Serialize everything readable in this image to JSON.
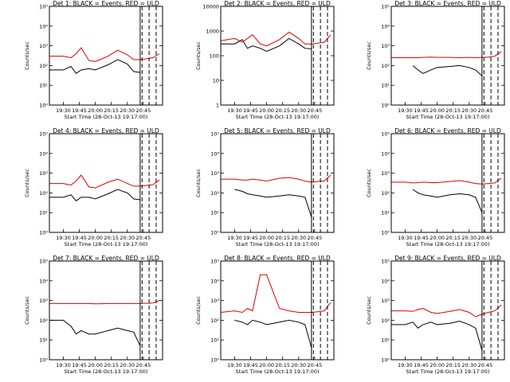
{
  "panel_titles": [
    "Det 1: BLACK = Events, RED = ULD",
    "Det 2: BLACK = Events, RED = ULD",
    "Det 3: BLACK = Events, RED = ULD",
    "Det 4: BLACK = Events, RED = ULD",
    "Det 5: BLACK = Events, RED = ULD",
    "Det 6: BLACK = Events, RED = ULD",
    "Det 7: BLACK = Events, RED = ULD",
    "Det 8: BLACK = Events, RED = ULD",
    "Det 9: BLACK = Events, RED = ULD"
  ],
  "xlabel": "Start Time (28-Oct-13 19:17:00)",
  "ylabel": "Counts/sec",
  "xticks": [
    "19:30",
    "19:45",
    "20:00",
    "20:15",
    "20:30",
    "20:45"
  ],
  "colors": {
    "events": "#000000",
    "uld": "#dd0000"
  },
  "chart_data": [
    {
      "type": "line",
      "title": "Det 1: BLACK = Events, RED = ULD",
      "ylim": [
        1,
        100000
      ],
      "yticks": [
        "10⁰",
        "10¹",
        "10²",
        "10³",
        "10⁴",
        "10⁵"
      ],
      "x": [
        19.28,
        19.5,
        19.62,
        19.7,
        19.78,
        19.9,
        20.0,
        20.2,
        20.35,
        20.5,
        20.6,
        20.7,
        20.8,
        20.9,
        21.0
      ],
      "series": [
        {
          "name": "BLACK = Events",
          "values": [
            60,
            60,
            90,
            40,
            60,
            70,
            60,
            110,
            200,
            120,
            50,
            45,
            null,
            null,
            null
          ]
        },
        {
          "name": "RED = ULD",
          "values": [
            300,
            300,
            250,
            400,
            800,
            180,
            160,
            300,
            600,
            350,
            200,
            200,
            220,
            250,
            400
          ]
        }
      ],
      "xlabel": "Start Time (28-Oct-13 19:17:00)",
      "ylabel": "Counts/sec",
      "yscale": "log"
    },
    {
      "type": "line",
      "title": "Det 2: BLACK = Events, RED = ULD",
      "ylim": [
        1,
        10000
      ],
      "yticks": [
        "1",
        "10",
        "100",
        "1000",
        "10000"
      ],
      "x": [
        19.28,
        19.5,
        19.62,
        19.7,
        19.78,
        19.9,
        20.0,
        20.2,
        20.35,
        20.5,
        20.6,
        20.7,
        20.8,
        20.9,
        21.0
      ],
      "series": [
        {
          "name": "BLACK = Events",
          "values": [
            300,
            300,
            450,
            200,
            250,
            200,
            150,
            250,
            500,
            300,
            200,
            190,
            null,
            null,
            null
          ]
        },
        {
          "name": "RED = ULD",
          "values": [
            400,
            500,
            350,
            500,
            700,
            300,
            250,
            450,
            900,
            500,
            300,
            300,
            320,
            350,
            700
          ]
        }
      ],
      "xlabel": "Start Time (28-Oct-13 19:17:00)",
      "ylabel": "Counts/sec",
      "yscale": "log"
    },
    {
      "type": "line",
      "title": "Det 3: BLACK = Events, RED = ULD",
      "ylim": [
        1,
        100000
      ],
      "yticks": [
        "10⁰",
        "10¹",
        "10²",
        "10³",
        "10⁴",
        "10⁵"
      ],
      "x": [
        19.28,
        19.5,
        19.62,
        19.7,
        19.78,
        19.9,
        20.0,
        20.2,
        20.35,
        20.5,
        20.6,
        20.7,
        20.8,
        20.9,
        21.0
      ],
      "series": [
        {
          "name": "BLACK = Events",
          "values": [
            null,
            null,
            100,
            60,
            40,
            60,
            80,
            90,
            100,
            80,
            60,
            30,
            null,
            null,
            null
          ]
        },
        {
          "name": "RED = ULD",
          "values": [
            250,
            250,
            250,
            250,
            260,
            270,
            260,
            260,
            250,
            260,
            250,
            260,
            270,
            300,
            500
          ]
        }
      ],
      "xlabel": "Start Time (28-Oct-13 19:17:00)",
      "ylabel": "Counts/sec",
      "yscale": "log"
    },
    {
      "type": "line",
      "title": "Det 4: BLACK = Events, RED = ULD",
      "ylim": [
        1,
        100000
      ],
      "yticks": [
        "10⁰",
        "10¹",
        "10²",
        "10³",
        "10⁴",
        "10⁵"
      ],
      "x": [
        19.28,
        19.5,
        19.62,
        19.7,
        19.78,
        19.9,
        20.0,
        20.2,
        20.35,
        20.5,
        20.6,
        20.7,
        20.8,
        20.9,
        21.0
      ],
      "series": [
        {
          "name": "BLACK = Events",
          "values": [
            60,
            60,
            80,
            40,
            60,
            60,
            50,
            90,
            150,
            100,
            50,
            45,
            null,
            null,
            null
          ]
        },
        {
          "name": "RED = ULD",
          "values": [
            300,
            300,
            250,
            400,
            800,
            200,
            180,
            350,
            500,
            300,
            220,
            220,
            240,
            260,
            450
          ]
        }
      ],
      "xlabel": "Start Time (28-Oct-13 19:17:00)",
      "ylabel": "Counts/sec",
      "yscale": "log"
    },
    {
      "type": "line",
      "title": "Det 5: BLACK = Events, RED = ULD",
      "ylim": [
        1,
        100000
      ],
      "yticks": [
        "10⁰",
        "10¹",
        "10²",
        "10³",
        "10⁴",
        "10⁵"
      ],
      "x": [
        19.28,
        19.5,
        19.62,
        19.7,
        19.78,
        19.9,
        20.0,
        20.2,
        20.35,
        20.5,
        20.6,
        20.7,
        20.8,
        20.9,
        21.0
      ],
      "series": [
        {
          "name": "BLACK = Events",
          "values": [
            null,
            150,
            120,
            90,
            80,
            70,
            60,
            70,
            80,
            70,
            60,
            6,
            null,
            null,
            null
          ]
        },
        {
          "name": "RED = ULD",
          "values": [
            500,
            500,
            450,
            450,
            500,
            450,
            400,
            550,
            600,
            500,
            400,
            350,
            380,
            400,
            800
          ]
        }
      ],
      "xlabel": "Start Time (28-Oct-13 19:17:00)",
      "ylabel": "Counts/sec",
      "yscale": "log"
    },
    {
      "type": "line",
      "title": "Det 6: BLACK = Events, RED = ULD",
      "ylim": [
        1,
        100000
      ],
      "yticks": [
        "10⁰",
        "10¹",
        "10²",
        "10³",
        "10⁴",
        "10⁵"
      ],
      "x": [
        19.28,
        19.5,
        19.62,
        19.7,
        19.78,
        19.9,
        20.0,
        20.2,
        20.35,
        20.5,
        20.6,
        20.7,
        20.8,
        20.9,
        21.0
      ],
      "series": [
        {
          "name": "BLACK = Events",
          "values": [
            null,
            null,
            150,
            100,
            80,
            70,
            60,
            80,
            90,
            80,
            60,
            10,
            null,
            null,
            null
          ]
        },
        {
          "name": "RED = ULD",
          "values": [
            350,
            350,
            320,
            330,
            350,
            330,
            330,
            380,
            420,
            350,
            300,
            280,
            300,
            320,
            550
          ]
        }
      ],
      "xlabel": "Start Time (28-Oct-13 19:17:00)",
      "ylabel": "Counts/sec",
      "yscale": "log"
    },
    {
      "type": "line",
      "title": "Det 7: BLACK = Events, RED = ULD",
      "ylim": [
        1,
        100000
      ],
      "yticks": [
        "10⁰",
        "10¹",
        "10²",
        "10³",
        "10⁴",
        "10⁵"
      ],
      "x": [
        19.28,
        19.5,
        19.62,
        19.7,
        19.78,
        19.9,
        20.0,
        20.2,
        20.35,
        20.5,
        20.6,
        20.7,
        20.8,
        20.9,
        21.0
      ],
      "series": [
        {
          "name": "BLACK = Events",
          "values": [
            100,
            100,
            50,
            20,
            30,
            20,
            20,
            30,
            40,
            30,
            25,
            5,
            null,
            null,
            null
          ]
        },
        {
          "name": "RED = ULD",
          "values": [
            700,
            700,
            700,
            700,
            700,
            700,
            680,
            700,
            700,
            700,
            700,
            700,
            720,
            750,
            1000
          ]
        }
      ],
      "xlabel": "Start Time (28-Oct-13 19:17:00)",
      "ylabel": "Counts/sec",
      "yscale": "log"
    },
    {
      "type": "line",
      "title": "Det 8: BLACK = Events, RED = ULD",
      "ylim": [
        1,
        100000
      ],
      "yticks": [
        "10⁰",
        "10¹",
        "10²",
        "10³",
        "10⁴",
        "10⁵"
      ],
      "x": [
        19.28,
        19.5,
        19.62,
        19.7,
        19.78,
        19.9,
        20.0,
        20.2,
        20.35,
        20.5,
        20.6,
        20.7,
        20.8,
        20.9,
        21.0
      ],
      "series": [
        {
          "name": "BLACK = Events",
          "values": [
            null,
            100,
            80,
            60,
            100,
            80,
            60,
            80,
            100,
            80,
            60,
            4,
            null,
            null,
            null
          ]
        },
        {
          "name": "RED = ULD",
          "values": [
            250,
            300,
            250,
            400,
            300,
            20000,
            20000,
            400,
            300,
            250,
            250,
            250,
            270,
            300,
            800
          ]
        }
      ],
      "xlabel": "Start Time (28-Oct-13 19:17:00)",
      "ylabel": "Counts/sec",
      "yscale": "log"
    },
    {
      "type": "line",
      "title": "Det 9: BLACK = Events, RED = ULD",
      "ylim": [
        1,
        100000
      ],
      "yticks": [
        "10⁰",
        "10¹",
        "10²",
        "10³",
        "10⁴",
        "10⁵"
      ],
      "x": [
        19.28,
        19.5,
        19.62,
        19.7,
        19.78,
        19.9,
        20.0,
        20.2,
        20.35,
        20.5,
        20.6,
        20.7,
        20.8,
        20.9,
        21.0
      ],
      "series": [
        {
          "name": "BLACK = Events",
          "values": [
            60,
            60,
            80,
            40,
            60,
            80,
            60,
            70,
            90,
            60,
            40,
            3,
            null,
            null,
            null
          ]
        },
        {
          "name": "RED = ULD",
          "values": [
            300,
            300,
            280,
            350,
            400,
            250,
            220,
            280,
            350,
            250,
            150,
            200,
            250,
            300,
            600
          ]
        }
      ],
      "xlabel": "Start Time (28-Oct-13 19:17:00)",
      "ylabel": "Counts/sec",
      "yscale": "log"
    }
  ]
}
